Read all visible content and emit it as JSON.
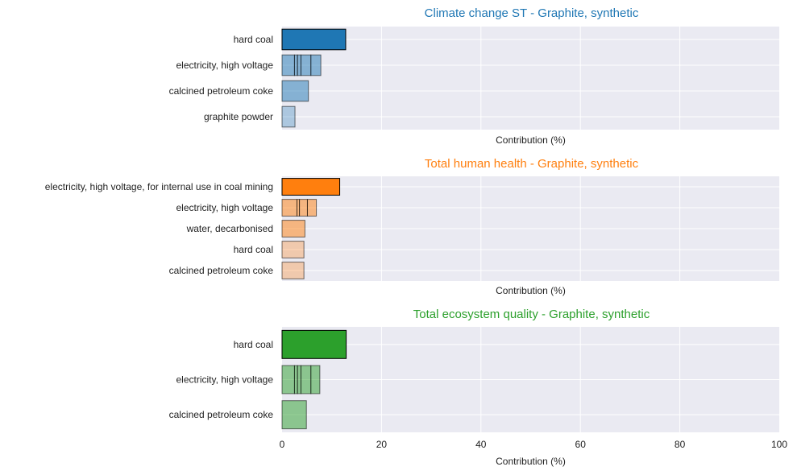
{
  "chart_data": [
    {
      "type": "bar",
      "orientation": "horizontal",
      "stacked": true,
      "title": "Climate change ST - Graphite, synthetic",
      "title_color": "#1f77b4",
      "color": "#1f77b4",
      "xlabel": "Contribution (%)",
      "xlim": [
        0,
        100
      ],
      "xticks_shown": false,
      "grid": true,
      "categories": [
        "hard coal",
        "electricity, high voltage",
        "calcined petroleum coke",
        "graphite powder"
      ],
      "segments": [
        [
          12.8
        ],
        [
          2.5,
          0.6,
          0.7,
          2.0,
          2.0
        ],
        [
          5.3
        ],
        [
          2.6
        ]
      ],
      "values": [
        12.8,
        7.8,
        5.3,
        2.6
      ]
    },
    {
      "type": "bar",
      "orientation": "horizontal",
      "stacked": true,
      "title": "Total human health - Graphite, synthetic",
      "title_color": "#ff7f0e",
      "color": "#ff7f0e",
      "xlabel": "Contribution (%)",
      "xlim": [
        0,
        100
      ],
      "xticks_shown": false,
      "grid": true,
      "categories": [
        "electricity, high voltage, for internal use in coal mining",
        "electricity, high voltage",
        "water, decarbonised",
        "hard coal",
        "calcined petroleum coke"
      ],
      "segments": [
        [
          11.6
        ],
        [
          3.0,
          0.5,
          1.6,
          1.8
        ],
        [
          4.6
        ],
        [
          4.4
        ],
        [
          4.4
        ]
      ],
      "values": [
        11.6,
        6.9,
        4.6,
        4.4,
        4.4
      ]
    },
    {
      "type": "bar",
      "orientation": "horizontal",
      "stacked": true,
      "title": "Total ecosystem quality - Graphite, synthetic",
      "title_color": "#2ca02c",
      "color": "#2ca02c",
      "xlabel": "Contribution (%)",
      "xlim": [
        0,
        100
      ],
      "xticks": [
        0,
        20,
        40,
        60,
        80,
        100
      ],
      "xticks_shown": true,
      "grid": true,
      "categories": [
        "hard coal",
        "electricity, high voltage",
        "calcined petroleum coke"
      ],
      "segments": [
        [
          12.9
        ],
        [
          2.5,
          0.6,
          0.7,
          2.0,
          1.8
        ],
        [
          4.9
        ]
      ],
      "values": [
        12.9,
        7.6,
        4.9
      ]
    }
  ]
}
